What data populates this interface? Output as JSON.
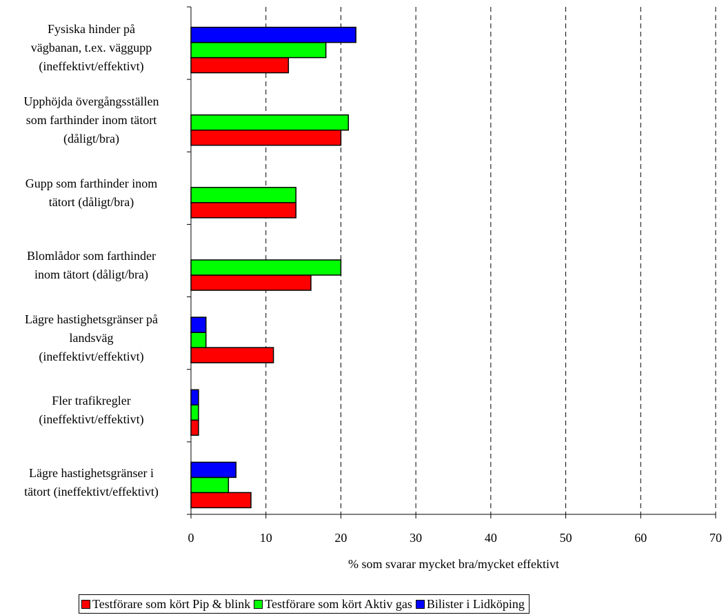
{
  "chart_data": {
    "type": "bar",
    "orientation": "horizontal",
    "categories": [
      "Fysiska hinder på\nvägbanan, t.ex. väggupp\n(ineffektivt/effektivt)",
      "Upphöjda övergångsställen\nsom farthinder inom tätort\n(dåligt/bra)",
      "Gupp som farthinder inom\ntätort (dåligt/bra)",
      "Blomlådor som farthinder\ninom tätort (dåligt/bra)",
      "Lägre hastighetsgränser på\nlandsväg\n(ineffektivt/effektivt)",
      "Fler trafikregler\n(ineffektivt/effektivt)",
      "Lägre hastighetsgränser i\ntätort (ineffektivt/effektivt)"
    ],
    "series": [
      {
        "name": "Testförare som kört Pip & blink",
        "color": "#ff0000",
        "values": [
          13,
          20,
          14,
          16,
          11,
          1,
          8
        ]
      },
      {
        "name": "Testförare som kört Aktiv gas",
        "color": "#00ff00",
        "values": [
          18,
          21,
          14,
          20,
          2,
          1,
          5
        ]
      },
      {
        "name": "Bilister i Lidköping",
        "color": "#0000ff",
        "values": [
          22,
          null,
          null,
          null,
          2,
          1,
          6
        ]
      }
    ],
    "xlabel": "% som svarar mycket bra/mycket effektivt",
    "xlim": [
      0,
      70
    ],
    "xticks": [
      "0",
      "10",
      "20",
      "30",
      "40",
      "50",
      "60",
      "70"
    ],
    "grid": "vertical dashed",
    "legend_position": "bottom"
  }
}
